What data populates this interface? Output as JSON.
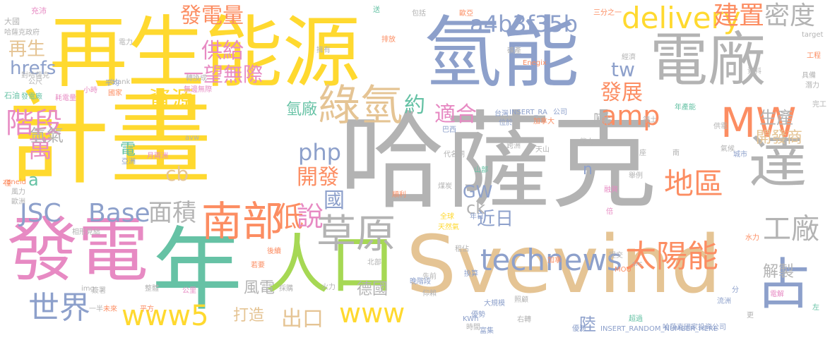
{
  "palette": {
    "gray": "#b3b3b3",
    "yellow": "#ffd92f",
    "tan": "#e5c494",
    "blue": "#8da0cb",
    "teal": "#66c2a5",
    "pink": "#e78ac3",
    "orange": "#fc8d62",
    "green": "#a6d854"
  },
  "words": [
    {
      "text": "哈薩克",
      "color": "gray"
    },
    {
      "text": "計畫",
      "color": "yellow"
    },
    {
      "text": "再生能源",
      "color": "yellow"
    },
    {
      "text": "氫能",
      "color": "blue"
    },
    {
      "text": "Svevind",
      "color": "tan"
    },
    {
      "text": "電廠",
      "color": "gray"
    },
    {
      "text": "發電",
      "color": "pink"
    },
    {
      "text": "年",
      "color": "teal"
    },
    {
      "text": "達",
      "color": "gray"
    },
    {
      "text": "人口",
      "color": "green"
    },
    {
      "text": "南部",
      "color": "orange"
    },
    {
      "text": "綠氫",
      "color": "tan"
    },
    {
      "text": "草原",
      "color": "gray"
    },
    {
      "text": "占",
      "color": "blue"
    },
    {
      "text": "MW",
      "color": "orange"
    },
    {
      "text": "世界",
      "color": "blue"
    },
    {
      "text": "www5",
      "color": "yellow"
    },
    {
      "text": "technews",
      "color": "blue"
    },
    {
      "text": "太陽能",
      "color": "orange"
    },
    {
      "text": "工廠",
      "color": "gray"
    },
    {
      "text": "地區",
      "color": "orange"
    },
    {
      "text": "delivery",
      "color": "yellow"
    },
    {
      "text": "建置",
      "color": "orange"
    },
    {
      "text": "密度",
      "color": "gray"
    },
    {
      "text": "面積",
      "color": "gray"
    },
    {
      "text": "Base",
      "color": "blue"
    },
    {
      "text": "php",
      "color": "blue"
    },
    {
      "text": "amp",
      "color": "orange"
    },
    {
      "text": "www",
      "color": "yellow"
    },
    {
      "text": "JSC",
      "color": "blue"
    },
    {
      "text": "階段",
      "color": "pink"
    },
    {
      "text": "a4b3f35b",
      "color": "blue"
    },
    {
      "text": "發電量",
      "color": "orange"
    },
    {
      "text": "開發",
      "color": "orange"
    },
    {
      "text": "資源",
      "color": "yellow"
    },
    {
      "text": "適合",
      "color": "pink"
    },
    {
      "text": "發展",
      "color": "orange"
    },
    {
      "text": "低",
      "color": "orange"
    },
    {
      "text": "說",
      "color": "pink"
    },
    {
      "text": "萬",
      "color": "pink"
    },
    {
      "text": "供給",
      "color": "pink"
    },
    {
      "text": "一望無際",
      "color": "pink"
    },
    {
      "text": "tw",
      "color": "blue"
    },
    {
      "text": "cb",
      "color": "tan"
    },
    {
      "text": "出口",
      "color": "tan"
    },
    {
      "text": "國",
      "color": "blue"
    },
    {
      "text": "約",
      "color": "teal"
    },
    {
      "text": "hrefs",
      "color": "blue"
    },
    {
      "text": "再生",
      "color": "tan"
    },
    {
      "text": "氫氣",
      "color": "gray"
    },
    {
      "text": "生產",
      "color": "gray"
    },
    {
      "text": "開發商",
      "color": "tan"
    },
    {
      "text": "近日",
      "color": "blue"
    },
    {
      "text": "解製",
      "color": "gray"
    },
    {
      "text": "德國",
      "color": "gray"
    },
    {
      "text": "風電",
      "color": "gray"
    },
    {
      "text": "打造",
      "color": "tan"
    },
    {
      "text": "陸",
      "color": "blue"
    },
    {
      "text": "GW",
      "color": "blue"
    },
    {
      "text": "ck",
      "color": "gray"
    },
    {
      "text": "n",
      "color": "blue"
    },
    {
      "text": "氫廠",
      "color": "teal"
    },
    {
      "text": "電",
      "color": "teal"
    },
    {
      "text": "a",
      "color": "teal"
    },
    {
      "text": "噸",
      "color": "gray"
    },
    {
      "text": "充沛",
      "color": "pink"
    },
    {
      "text": "大國",
      "color": "gray"
    },
    {
      "text": "哈薩克政府",
      "color": "gray"
    },
    {
      "text": "對哈薩克",
      "color": "gray"
    },
    {
      "text": "公尺",
      "color": "gray"
    },
    {
      "text": "石油",
      "color": "teal"
    },
    {
      "text": "發電廠",
      "color": "teal"
    },
    {
      "text": "耗電量",
      "color": "pink"
    },
    {
      "text": "相形見絀",
      "color": "gray"
    },
    {
      "text": "風力",
      "color": "gray"
    },
    {
      "text": "歐洲",
      "color": "gray"
    },
    {
      "text": "zoneid",
      "color": "orange"
    },
    {
      "text": "INSERT_RA",
      "color": "blue"
    },
    {
      "text": "INSERT_RANDOM_NUMBER_HERE",
      "color": "blue"
    },
    {
      "text": "哈薩克國家投資公司",
      "color": "blue"
    },
    {
      "text": "KWh",
      "color": "blue"
    },
    {
      "text": "MOU",
      "color": "orange"
    },
    {
      "text": "Enegix",
      "color": "orange"
    },
    {
      "text": "target",
      "color": "gray"
    },
    {
      "text": "_blank",
      "color": "gray"
    },
    {
      "text": "天然氣",
      "color": "yellow"
    },
    {
      "text": "全球",
      "color": "yellow"
    },
    {
      "text": "煤炭",
      "color": "gray"
    },
    {
      "text": "加拿大",
      "color": "orange"
    },
    {
      "text": "代名詞",
      "color": "gray"
    },
    {
      "text": "巴西",
      "color": "blue"
    },
    {
      "text": "台灣",
      "color": "blue"
    },
    {
      "text": "公司",
      "color": "blue"
    },
    {
      "text": "領土",
      "color": "gray"
    },
    {
      "text": "年產能",
      "color": "teal"
    },
    {
      "text": "工程",
      "color": "orange"
    },
    {
      "text": "具備",
      "color": "gray"
    },
    {
      "text": "潛力",
      "color": "gray"
    },
    {
      "text": "完工",
      "color": "gray"
    },
    {
      "text": "經濟",
      "color": "gray"
    },
    {
      "text": "資料",
      "color": "gray"
    },
    {
      "text": "城市",
      "color": "blue"
    },
    {
      "text": "氣候",
      "color": "gray"
    },
    {
      "text": "水力",
      "color": "orange"
    },
    {
      "text": "電解",
      "color": "pink"
    },
    {
      "text": "融資",
      "color": "pink"
    },
    {
      "text": "大規模",
      "color": "blue"
    },
    {
      "text": "超過",
      "color": "teal"
    },
    {
      "text": "時間",
      "color": "gray"
    },
    {
      "text": "照顧",
      "color": "gray"
    },
    {
      "text": "優勢",
      "color": "blue"
    },
    {
      "text": "富集",
      "color": "blue"
    },
    {
      "text": "右轉",
      "color": "gray"
    },
    {
      "text": "北部",
      "color": "gray"
    },
    {
      "text": "先前",
      "color": "gray"
    },
    {
      "text": "換算",
      "color": "blue"
    },
    {
      "text": "採購",
      "color": "gray"
    },
    {
      "text": "後續",
      "color": "orange"
    },
    {
      "text": "若要",
      "color": "orange"
    },
    {
      "text": "簽署",
      "color": "gray"
    },
    {
      "text": "無邊無際",
      "color": "pink"
    },
    {
      "text": "轉換成",
      "color": "gray"
    },
    {
      "text": "國家",
      "color": "orange"
    },
    {
      "text": "平均",
      "color": "blue"
    },
    {
      "text": "小時",
      "color": "pink"
    },
    {
      "text": "電力",
      "color": "gray"
    },
    {
      "text": "擁有",
      "color": "gray"
    },
    {
      "text": "排放",
      "color": "orange"
    },
    {
      "text": "三分之一",
      "color": "orange"
    },
    {
      "text": "歐亞",
      "color": "orange"
    },
    {
      "text": "包括",
      "color": "gray"
    },
    {
      "text": "接近",
      "color": "gray"
    },
    {
      "text": "送",
      "color": "teal"
    },
    {
      "text": "礦產",
      "color": "gray"
    },
    {
      "text": "平方",
      "color": "orange"
    },
    {
      "text": "一半",
      "color": "gray"
    },
    {
      "text": "未來",
      "color": "orange"
    },
    {
      "text": "亞洲",
      "color": "blue"
    },
    {
      "text": "月兩洲",
      "color": "pink"
    },
    {
      "text": "公里",
      "color": "pink"
    },
    {
      "text": "天山",
      "color": "gray"
    },
    {
      "text": "跨洲",
      "color": "gray"
    },
    {
      "text": "倍",
      "color": "pink"
    },
    {
      "text": "僅",
      "color": "orange"
    },
    {
      "text": "img",
      "color": "gray"
    },
    {
      "text": "src",
      "color": "gray"
    },
    {
      "text": "avw",
      "color": "gray"
    },
    {
      "text": "能力",
      "color": "gray"
    },
    {
      "text": "座",
      "color": "gray"
    },
    {
      "text": "南",
      "color": "gray"
    },
    {
      "text": "加拿",
      "color": "orange"
    },
    {
      "text": "位於",
      "color": "blue"
    },
    {
      "text": "提交",
      "color": "gray"
    },
    {
      "text": "仰賴",
      "color": "gray"
    },
    {
      "text": "年日",
      "color": "blue"
    },
    {
      "text": "租佔",
      "color": "gray"
    },
    {
      "text": "整體",
      "color": "gray"
    },
    {
      "text": "火力",
      "color": "gray"
    },
    {
      "text": "順利",
      "color": "orange"
    },
    {
      "text": "舉例",
      "color": "gray"
    },
    {
      "text": "供電",
      "color": "gray"
    },
    {
      "text": "更",
      "color": "gray"
    },
    {
      "text": "左",
      "color": "teal"
    },
    {
      "text": "山部",
      "color": "teal"
    },
    {
      "text": "流洲",
      "color": "blue"
    },
    {
      "text": "優源",
      "color": "blue"
    },
    {
      "text": "分",
      "color": "blue"
    },
    {
      "text": "晚階段",
      "color": "blue"
    }
  ]
}
